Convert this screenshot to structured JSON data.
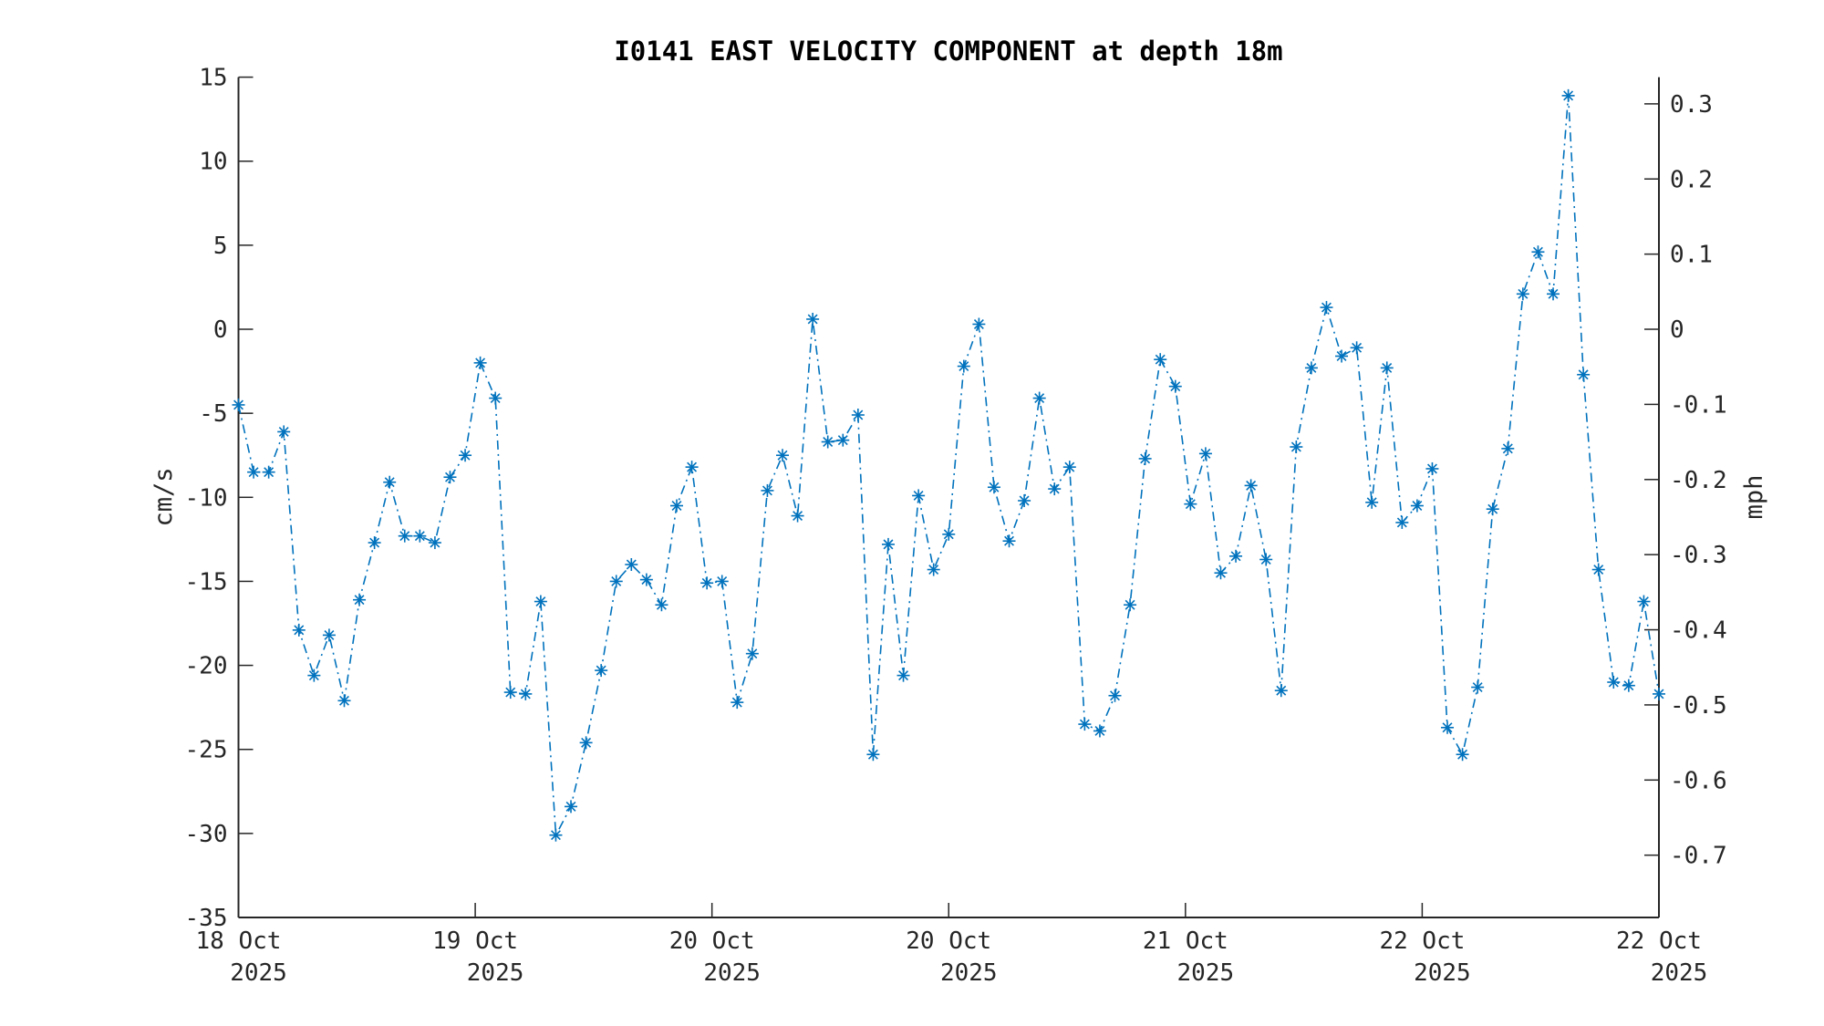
{
  "chart_data": {
    "type": "line",
    "title": "I0141 EAST VELOCITY COMPONENT at depth 18m",
    "ylabel": "cm/s",
    "ylabel_right": "mph",
    "ylim": [
      -35,
      15
    ],
    "yticks": [
      15,
      10,
      5,
      0,
      -5,
      -10,
      -15,
      -20,
      -25,
      -30,
      -35
    ],
    "ylim_right_conversion": "mph = cm/s / 44.704",
    "yticks_right": [
      0.3,
      0.2,
      0.1,
      0,
      -0.1,
      -0.2,
      -0.3,
      -0.4,
      -0.5,
      -0.6,
      -0.7
    ],
    "xticks": [
      {
        "day": "18 Oct",
        "year": "2025"
      },
      {
        "day": "19 Oct",
        "year": "2025"
      },
      {
        "day": "20 Oct",
        "year": "2025"
      },
      {
        "day": "20 Oct",
        "year": "2025"
      },
      {
        "day": "21 Oct",
        "year": "2025"
      },
      {
        "day": "22 Oct",
        "year": "2025"
      },
      {
        "day": "22 Oct",
        "year": "2025"
      }
    ],
    "grid": false,
    "color": "#0072BD",
    "line_style": "dash-dot",
    "marker": "asterisk",
    "values": [
      -4.5,
      -8.5,
      -8.5,
      -6.1,
      -17.9,
      -20.6,
      -18.2,
      -22.1,
      -16.1,
      -12.7,
      -9.1,
      -12.3,
      -12.3,
      -12.7,
      -8.8,
      -7.5,
      -2.0,
      -4.1,
      -21.6,
      -21.7,
      -16.2,
      -30.1,
      -28.4,
      -24.6,
      -20.3,
      -15.0,
      -14.0,
      -14.9,
      -16.4,
      -10.5,
      -8.2,
      -15.1,
      -15.0,
      -22.2,
      -19.3,
      -9.6,
      -7.5,
      -11.1,
      0.6,
      -6.7,
      -6.6,
      -5.1,
      -25.3,
      -12.8,
      -20.6,
      -9.9,
      -14.3,
      -12.2,
      -2.2,
      0.3,
      -9.4,
      -12.6,
      -10.2,
      -4.1,
      -9.5,
      -8.2,
      -23.5,
      -23.9,
      -21.8,
      -16.4,
      -7.7,
      -1.8,
      -3.4,
      -10.4,
      -7.4,
      -14.5,
      -13.5,
      -9.3,
      -13.7,
      -21.5,
      -7.0,
      -2.3,
      1.3,
      -1.6,
      -1.1,
      -10.3,
      -2.3,
      -11.5,
      -10.5,
      -8.3,
      -23.7,
      -25.3,
      -21.3,
      -10.7,
      -7.1,
      2.1,
      4.6,
      2.1,
      13.9,
      -2.7,
      -14.3,
      -21.0,
      -21.2,
      -16.2,
      -21.7
    ]
  }
}
